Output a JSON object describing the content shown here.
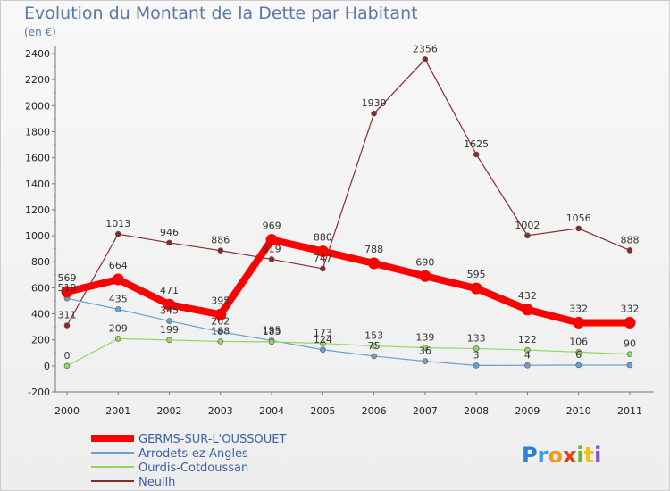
{
  "title": "Evolution du Montant de la Dette par Habitant",
  "subtitle": "(en €)",
  "brand": "Proxiti",
  "chart_data": {
    "type": "line",
    "x": [
      "2000",
      "2001",
      "2002",
      "2003",
      "2004",
      "2005",
      "2006",
      "2007",
      "2008",
      "2009",
      "2010",
      "2011"
    ],
    "ylim": [
      -200,
      2400
    ],
    "yticks": [
      -200,
      0,
      200,
      400,
      600,
      800,
      1000,
      1200,
      1400,
      1600,
      1800,
      2000,
      2200,
      2400
    ],
    "grid": false,
    "legend_position": "bottom-left",
    "series": [
      {
        "name": "Neuilh",
        "color": "#8b2a2a",
        "width": 1.2,
        "values": [
          311,
          1013,
          946,
          886,
          819,
          747,
          1939,
          2356,
          1625,
          1002,
          1056,
          888
        ],
        "labels": [
          "311",
          "1013",
          "946",
          "886",
          "819",
          "747",
          "1939",
          "2356",
          "1625",
          "1002",
          "1056",
          "888"
        ]
      },
      {
        "name": "Arrodets-ez-Angles",
        "color": "#6a9fd0",
        "width": 1.2,
        "values": [
          519,
          435,
          345,
          262,
          195,
          124,
          75,
          36,
          3,
          4,
          6,
          6
        ],
        "labels": [
          "519",
          "435",
          "345",
          "262",
          "195",
          "124",
          "75",
          "36",
          "3",
          "4",
          "6",
          ""
        ]
      },
      {
        "name": "Ourdis-Cotdoussan",
        "color": "#8fd860",
        "width": 1.2,
        "values": [
          0,
          209,
          199,
          188,
          185,
          173,
          153,
          139,
          133,
          122,
          106,
          90
        ],
        "labels": [
          "0",
          "209",
          "199",
          "188",
          "185",
          "173",
          "153",
          "139",
          "133",
          "122",
          "106",
          "90"
        ]
      },
      {
        "name": "GERMS-SUR-L'OUSSOUET",
        "color": "#ff0000",
        "width": 8,
        "values": [
          569,
          664,
          471,
          395,
          969,
          880,
          788,
          690,
          595,
          432,
          332,
          332
        ],
        "labels": [
          "569",
          "664",
          "471",
          "395",
          "969",
          "880",
          "788",
          "690",
          "595",
          "432",
          "332",
          "332"
        ]
      }
    ],
    "legend_order": [
      "GERMS-SUR-L'OUSSOUET",
      "Arrodets-ez-Angles",
      "Ourdis-Cotdoussan",
      "Neuilh"
    ]
  }
}
